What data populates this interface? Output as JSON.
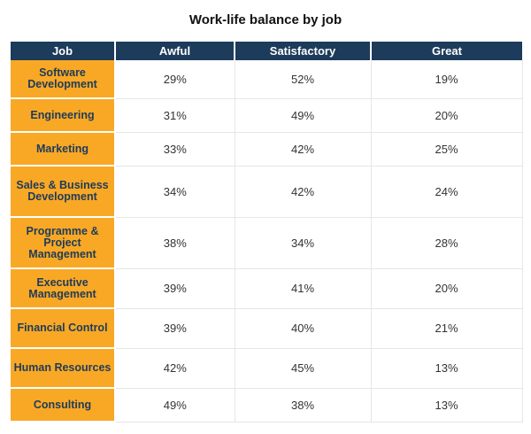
{
  "chart_data": {
    "type": "table",
    "title": "Work-life balance by job",
    "columns": [
      "Job",
      "Awful",
      "Satisfactory",
      "Great"
    ],
    "rows": [
      [
        "Software Development",
        "29%",
        "52%",
        "19%"
      ],
      [
        "Engineering",
        "31%",
        "49%",
        "20%"
      ],
      [
        "Marketing",
        "33%",
        "42%",
        "25%"
      ],
      [
        "Sales & Business Development",
        "34%",
        "42%",
        "24%"
      ],
      [
        "Programme & Project Management",
        "38%",
        "34%",
        "28%"
      ],
      [
        "Executive Management",
        "39%",
        "41%",
        "20%"
      ],
      [
        "Financial Control",
        "39%",
        "40%",
        "21%"
      ],
      [
        "Human Resources",
        "42%",
        "45%",
        "13%"
      ],
      [
        "Consulting",
        "49%",
        "38%",
        "13%"
      ]
    ]
  },
  "colors": {
    "header_bg": "#1d3b5b",
    "job_bg": "#f9a825",
    "job_text": "#1d3b5b"
  }
}
